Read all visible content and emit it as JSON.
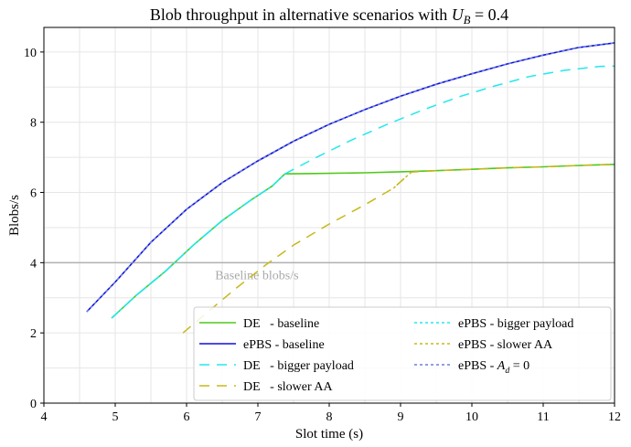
{
  "chart_data": {
    "type": "line",
    "title": "Blob throughput in alternative scenarios with U_B = 0.4",
    "title_parts": {
      "prefix": "Blob throughput in alternative scenarios with ",
      "var": "U",
      "sub": "B",
      "suffix": " = 0.4"
    },
    "xlabel": "Slot time (s)",
    "ylabel": "Blobs/s",
    "xlim": [
      4,
      12
    ],
    "ylim": [
      0,
      10.7
    ],
    "xticks": [
      4,
      5,
      6,
      7,
      8,
      9,
      10,
      11,
      12
    ],
    "yticks": [
      0,
      2,
      4,
      6,
      8,
      10
    ],
    "grid": true,
    "legend_position": "lower-right",
    "reference_line": {
      "y": 4,
      "label": "Baseline blobs/s",
      "color": "#b0b0b0"
    },
    "series": [
      {
        "name": "DE   - baseline",
        "color": "#4fc81a",
        "style": "solid",
        "x": [
          4.95,
          5.3,
          5.7,
          6.1,
          6.5,
          6.9,
          7.2,
          7.38,
          7.8,
          8.5,
          9.0,
          9.5,
          10.0,
          10.5,
          11.0,
          11.5,
          12.0
        ],
        "y": [
          2.42,
          3.08,
          3.75,
          4.51,
          5.2,
          5.78,
          6.18,
          6.53,
          6.54,
          6.56,
          6.59,
          6.62,
          6.66,
          6.7,
          6.73,
          6.77,
          6.8
        ]
      },
      {
        "name": "ePBS - baseline",
        "color": "#1111dd",
        "style": "solid",
        "x": [
          4.6,
          5.0,
          5.5,
          6.0,
          6.5,
          7.0,
          7.5,
          8.0,
          8.5,
          9.0,
          9.5,
          10.0,
          10.5,
          11.0,
          11.5,
          12.0
        ],
        "y": [
          2.6,
          3.45,
          4.58,
          5.52,
          6.28,
          6.9,
          7.46,
          7.94,
          8.36,
          8.74,
          9.08,
          9.38,
          9.66,
          9.91,
          10.13,
          10.26
        ]
      },
      {
        "name": "DE   - bigger payload",
        "color": "#22e8ee",
        "style": "dashed",
        "x": [
          4.95,
          5.3,
          5.7,
          6.1,
          6.5,
          6.9,
          7.2,
          7.38,
          7.8,
          8.3,
          8.8,
          9.3,
          9.8,
          10.3,
          10.8,
          11.3,
          11.8,
          12.0
        ],
        "y": [
          2.42,
          3.08,
          3.75,
          4.51,
          5.2,
          5.78,
          6.18,
          6.53,
          6.98,
          7.48,
          7.93,
          8.34,
          8.71,
          9.02,
          9.3,
          9.48,
          9.59,
          9.6
        ]
      },
      {
        "name": "DE   - slower AA",
        "color": "#c8b81a",
        "style": "dashed",
        "x": [
          5.95,
          6.3,
          6.7,
          7.1,
          7.5,
          8.0,
          8.5,
          8.9,
          9.15,
          9.5,
          10.0,
          10.5,
          11.0,
          11.5,
          12.0
        ],
        "y": [
          2.0,
          2.6,
          3.28,
          3.92,
          4.5,
          5.1,
          5.65,
          6.12,
          6.58,
          6.62,
          6.66,
          6.7,
          6.73,
          6.77,
          6.8
        ]
      },
      {
        "name": "ePBS - bigger payload",
        "color": "#22e8ee",
        "style": "dotted",
        "x": [
          4.95,
          5.3,
          5.7,
          6.1,
          6.5,
          6.9,
          7.2,
          7.38
        ],
        "y": [
          2.42,
          3.08,
          3.75,
          4.51,
          5.2,
          5.78,
          6.18,
          6.53
        ]
      },
      {
        "name": "ePBS - slower AA",
        "color": "#c8b81a",
        "style": "dotted",
        "x": [
          8.9,
          9.15
        ],
        "y": [
          6.12,
          6.58
        ]
      },
      {
        "name": "ePBS - A_d = 0",
        "name_parts": {
          "prefix": "ePBS - ",
          "var": "A",
          "sub": "d",
          "suffix": " = 0"
        },
        "color": "#6a7fe0",
        "style": "dotted",
        "x": [
          4.6,
          5.0,
          5.5,
          6.0,
          6.5,
          7.0,
          7.5,
          8.0,
          8.5,
          9.0,
          9.5,
          10.0,
          10.5,
          11.0,
          11.5,
          12.0
        ],
        "y": [
          2.6,
          3.45,
          4.58,
          5.52,
          6.28,
          6.9,
          7.46,
          7.94,
          8.36,
          8.74,
          9.08,
          9.38,
          9.66,
          9.91,
          10.13,
          10.26
        ]
      }
    ]
  }
}
